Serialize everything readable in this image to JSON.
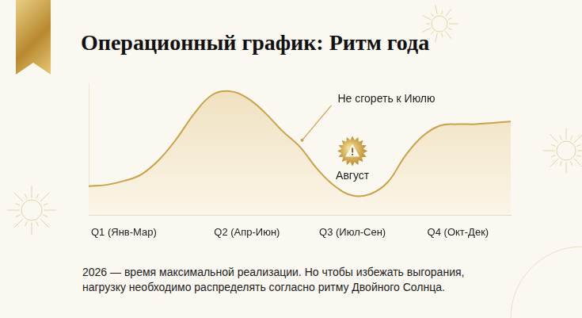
{
  "chart_data": {
    "type": "area",
    "title": "Операционный график: Ритм года",
    "caption": "2026 — время максимальной реализации. Но чтобы избежать выгорания, нагрузку необходимо распределять согласно ритму Двойного Солнца.",
    "annotations": [
      "Не сгореть к Июлю",
      "Август"
    ],
    "categories": [
      null,
      null,
      "Q1 (Янв-Мар)",
      null,
      null,
      null,
      null,
      null,
      null,
      "Q2 (Апр-Июн)",
      null,
      null,
      null,
      null,
      null,
      "Q3 (Июл-Сен)",
      null,
      null,
      null,
      null,
      null,
      "Q4 (Окт-Дек)",
      null,
      null,
      null
    ],
    "values": [
      22,
      23,
      26,
      31,
      42,
      58,
      77,
      91,
      94,
      89,
      78,
      64,
      52,
      35,
      22,
      15,
      16,
      25,
      45,
      60,
      68,
      69,
      69,
      70,
      71
    ],
    "color": "#c9a24a",
    "ylim": [
      0,
      100
    ],
    "grid": false,
    "tick_labels": "x"
  }
}
